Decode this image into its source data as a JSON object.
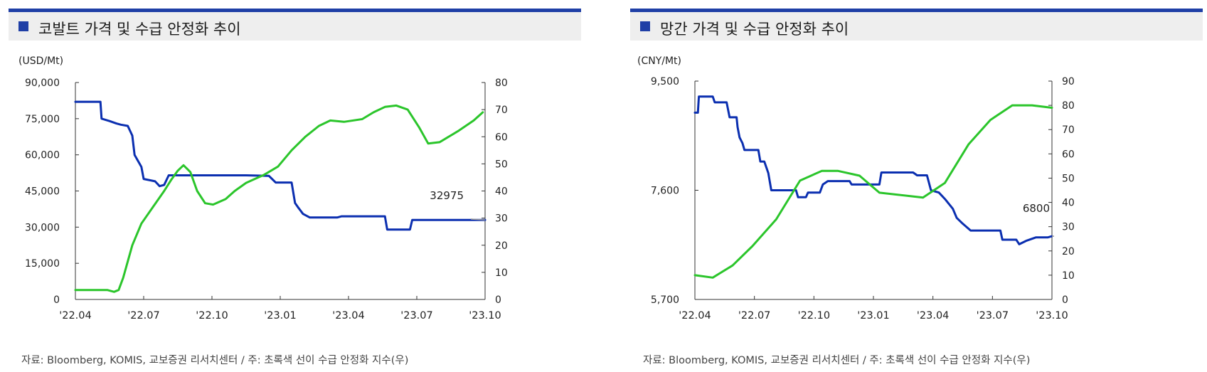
{
  "colors": {
    "header_bar": "#1f3fa6",
    "title_square": "#1f3fa6",
    "price_line": "#0b2fb0",
    "index_line": "#2bc52b",
    "axis": "#333333",
    "callout": "#9a9a9a"
  },
  "source_note": "자료: Bloomberg, KOMIS, 교보증권 리서치센터 / 주: 초록색 선이 수급 안정화 지수(우)",
  "x_ticks": [
    "'22.04",
    "'22.07",
    "'22.10",
    "'23.01",
    "'23.04",
    "'23.07",
    "'23.10"
  ],
  "panels": [
    {
      "title": "코발트 가격 및 수급 안정화 추이",
      "source": "자료: Bloomberg, KOMIS, 교보증권 리서치센터 / 주: 초록색 선이 수급 안정화 지수(우)",
      "chart_data": {
        "type": "line",
        "y_left_unit": "(USD/Mt)",
        "y_left_ticks": [
          "90,000",
          "75,000",
          "60,000",
          "45,000",
          "30,000",
          "15,000",
          "0"
        ],
        "y_left_range": [
          0,
          90000
        ],
        "y_right_ticks": [
          "80",
          "70",
          "60",
          "50",
          "40",
          "30",
          "20",
          "10",
          "0"
        ],
        "y_right_range": [
          0,
          80
        ],
        "x_ticks": [
          "'22.04",
          "'22.07",
          "'22.10",
          "'23.01",
          "'23.04",
          "'23.07",
          "'23.10"
        ],
        "x_range": [
          0,
          18
        ],
        "callout": "32975",
        "callout_value": 32975,
        "series": [
          {
            "axis": "left",
            "values": [
              [
                0,
                82000
              ],
              [
                1.1,
                82000
              ],
              [
                1.15,
                75000
              ],
              [
                1.5,
                74000
              ],
              [
                1.8,
                73000
              ],
              [
                2.0,
                72500
              ],
              [
                2.3,
                72000
              ],
              [
                2.5,
                68000
              ],
              [
                2.6,
                60000
              ],
              [
                2.9,
                55000
              ],
              [
                3.0,
                50000
              ],
              [
                3.5,
                49000
              ],
              [
                3.7,
                47000
              ],
              [
                3.9,
                47500
              ],
              [
                4.1,
                51500
              ],
              [
                6.5,
                51500
              ],
              [
                7.5,
                51500
              ],
              [
                8.5,
                51300
              ],
              [
                8.8,
                48500
              ],
              [
                9.5,
                48500
              ],
              [
                9.65,
                40000
              ],
              [
                9.8,
                38000
              ],
              [
                10.0,
                35500
              ],
              [
                10.3,
                34000
              ],
              [
                11.5,
                34000
              ],
              [
                11.7,
                34500
              ],
              [
                13.6,
                34500
              ],
              [
                13.7,
                29000
              ],
              [
                14.7,
                29000
              ],
              [
                14.8,
                33000
              ],
              [
                18,
                33000
              ]
            ]
          },
          {
            "axis": "right",
            "values": [
              [
                0,
                3.5
              ],
              [
                1.0,
                3.5
              ],
              [
                1.4,
                3.5
              ],
              [
                1.7,
                2.8
              ],
              [
                1.9,
                3.5
              ],
              [
                2.1,
                8
              ],
              [
                2.5,
                20
              ],
              [
                2.9,
                28
              ],
              [
                3.4,
                34
              ],
              [
                3.9,
                40
              ],
              [
                4.2,
                44
              ],
              [
                4.5,
                47.5
              ],
              [
                4.75,
                49.5
              ],
              [
                5.05,
                47
              ],
              [
                5.35,
                40
              ],
              [
                5.7,
                35.5
              ],
              [
                6.05,
                35
              ],
              [
                6.6,
                37
              ],
              [
                7.0,
                40
              ],
              [
                7.5,
                43
              ],
              [
                8.3,
                46
              ],
              [
                8.9,
                49
              ],
              [
                9.5,
                55
              ],
              [
                10.1,
                60
              ],
              [
                10.7,
                64
              ],
              [
                11.2,
                66
              ],
              [
                11.8,
                65.5
              ],
              [
                12.6,
                66.5
              ],
              [
                13.1,
                69
              ],
              [
                13.6,
                71
              ],
              [
                14.1,
                71.5
              ],
              [
                14.6,
                70
              ],
              [
                15.1,
                63.5
              ],
              [
                15.5,
                57.5
              ],
              [
                16.0,
                58
              ],
              [
                16.8,
                62
              ],
              [
                17.5,
                66
              ],
              [
                17.9,
                69
              ]
            ]
          }
        ]
      }
    },
    {
      "title": "망간 가격 및 수급 안정화 추이",
      "source": "자료: Bloomberg, KOMIS, 교보증권 리서치센터 / 주: 초록색 선이 수급 안정화 지수(우)",
      "chart_data": {
        "type": "line",
        "y_left_unit": "(CNY/Mt)",
        "y_left_ticks": [
          "9,500",
          "7,600",
          "5,700"
        ],
        "y_left_range": [
          5700,
          9500
        ],
        "y_right_ticks": [
          "90",
          "80",
          "70",
          "60",
          "50",
          "40",
          "30",
          "20",
          "10",
          "0"
        ],
        "y_right_range": [
          0,
          90
        ],
        "x_ticks": [
          "'22.04",
          "'22.07",
          "'22.10",
          "'23.01",
          "'23.04",
          "'23.07",
          "'23.10"
        ],
        "x_range": [
          0,
          18
        ],
        "callout": "6800",
        "callout_value": 6800,
        "series": [
          {
            "axis": "left",
            "values": [
              [
                0,
                8950
              ],
              [
                0.15,
                8950
              ],
              [
                0.2,
                9230
              ],
              [
                0.9,
                9230
              ],
              [
                1.0,
                9130
              ],
              [
                1.6,
                9130
              ],
              [
                1.75,
                8870
              ],
              [
                2.1,
                8870
              ],
              [
                2.15,
                8700
              ],
              [
                2.25,
                8520
              ],
              [
                2.4,
                8420
              ],
              [
                2.5,
                8300
              ],
              [
                3.2,
                8300
              ],
              [
                3.3,
                8100
              ],
              [
                3.5,
                8100
              ],
              [
                3.7,
                7900
              ],
              [
                3.85,
                7600
              ],
              [
                5.1,
                7600
              ],
              [
                5.2,
                7480
              ],
              [
                5.6,
                7480
              ],
              [
                5.7,
                7560
              ],
              [
                6.3,
                7560
              ],
              [
                6.45,
                7700
              ],
              [
                6.7,
                7760
              ],
              [
                7.8,
                7760
              ],
              [
                7.9,
                7700
              ],
              [
                9.3,
                7700
              ],
              [
                9.4,
                7910
              ],
              [
                11.0,
                7910
              ],
              [
                11.2,
                7860
              ],
              [
                11.7,
                7860
              ],
              [
                11.9,
                7600
              ],
              [
                12.3,
                7560
              ],
              [
                12.6,
                7450
              ],
              [
                13.0,
                7280
              ],
              [
                13.2,
                7120
              ],
              [
                13.5,
                7020
              ],
              [
                13.9,
                6900
              ],
              [
                15.4,
                6900
              ],
              [
                15.5,
                6740
              ],
              [
                16.2,
                6740
              ],
              [
                16.35,
                6660
              ],
              [
                16.7,
                6720
              ],
              [
                17.2,
                6780
              ],
              [
                17.8,
                6780
              ],
              [
                18,
                6800
              ]
            ]
          },
          {
            "axis": "right",
            "values": [
              [
                0,
                10
              ],
              [
                0.9,
                9
              ],
              [
                1.9,
                14
              ],
              [
                2.9,
                22
              ],
              [
                4.1,
                33
              ],
              [
                5.3,
                49
              ],
              [
                6.4,
                53
              ],
              [
                7.2,
                53
              ],
              [
                8.3,
                51
              ],
              [
                9.3,
                44
              ],
              [
                11.5,
                42
              ],
              [
                12.6,
                48
              ],
              [
                13.8,
                64
              ],
              [
                14.9,
                74
              ],
              [
                16.0,
                80
              ],
              [
                17.0,
                80
              ],
              [
                18,
                79
              ]
            ]
          }
        ]
      }
    }
  ]
}
